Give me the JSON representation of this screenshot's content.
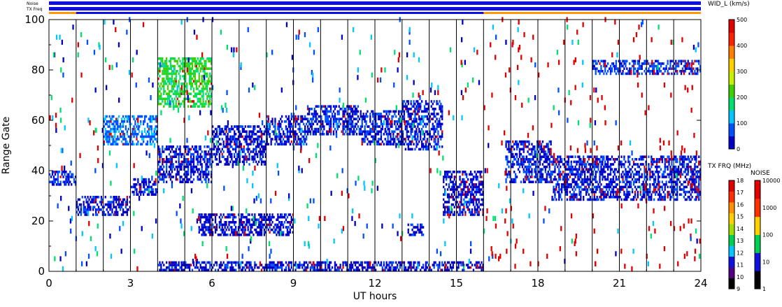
{
  "chart_data": {
    "type": "scatter",
    "subtype": "range-time-intensity",
    "xlabel": "UT hours",
    "ylabel": "Range Gate",
    "xlim": [
      0,
      24
    ],
    "ylim": [
      0,
      100
    ],
    "x_ticks": [
      "0",
      "3",
      "6",
      "9",
      "12",
      "15",
      "18",
      "21",
      "24"
    ],
    "y_ticks": [
      "0",
      "20",
      "40",
      "60",
      "80",
      "100"
    ],
    "scan_boundaries_ut": [
      1,
      2,
      3,
      4,
      5,
      6,
      7,
      8,
      9,
      10,
      11,
      12,
      13,
      14,
      15,
      16,
      17,
      18,
      19,
      20,
      21,
      22,
      23
    ],
    "status_bars": [
      {
        "label": "Noise",
        "color": "#1010e0"
      },
      {
        "label": "TX Freq",
        "color": "#1010e0"
      },
      {
        "label": "",
        "color": "#ff9900",
        "segments": [
          [
            0,
            1
          ],
          [
            16,
            24
          ]
        ]
      }
    ],
    "colorbars": [
      {
        "label": "WID_L (km/s)",
        "ticks": [
          "0",
          "100",
          "200",
          "300",
          "400",
          "500"
        ],
        "colors": [
          "#0000c8",
          "#0050ff",
          "#00c8ff",
          "#00e070",
          "#40d000",
          "#c8f000",
          "#ffd000",
          "#ff8000",
          "#ff2000",
          "#e00000"
        ]
      },
      {
        "label": "TX FRQ (MHz)",
        "ticks": [
          "9",
          "10",
          "11",
          "12",
          "13",
          "14",
          "15",
          "16",
          "17",
          "18"
        ],
        "colors": [
          "#000000",
          "#500080",
          "#1010e0",
          "#00c8ff",
          "#00d050",
          "#a0e000",
          "#ffd000",
          "#ff9000",
          "#ff3000",
          "#e00000"
        ]
      },
      {
        "label": "NOISE",
        "ticks": [
          "1",
          "10",
          "100",
          "1000",
          "10000"
        ],
        "colors": [
          "#000000",
          "#1010e0",
          "#00d050",
          "#ffd000",
          "#ff3000",
          "#e00000"
        ]
      }
    ],
    "echo_regions": [
      {
        "x0": 0.0,
        "x1": 1.0,
        "y0": 34,
        "y1": 40,
        "level": 45
      },
      {
        "x0": 1.0,
        "x1": 3.0,
        "y0": 22,
        "y1": 30,
        "level": 40
      },
      {
        "x0": 3.0,
        "x1": 4.0,
        "y0": 30,
        "y1": 37,
        "level": 40
      },
      {
        "x0": 4.0,
        "x1": 6.0,
        "y0": 35,
        "y1": 50,
        "level": 35
      },
      {
        "x0": 6.0,
        "x1": 8.0,
        "y0": 42,
        "y1": 58,
        "level": 35
      },
      {
        "x0": 8.0,
        "x1": 9.5,
        "y0": 50,
        "y1": 62,
        "level": 40
      },
      {
        "x0": 9.5,
        "x1": 11.5,
        "y0": 54,
        "y1": 66,
        "level": 45
      },
      {
        "x0": 11.5,
        "x1": 13.0,
        "y0": 50,
        "y1": 64,
        "level": 45
      },
      {
        "x0": 13.0,
        "x1": 14.5,
        "y0": 48,
        "y1": 68,
        "level": 40
      },
      {
        "x0": 14.5,
        "x1": 16.0,
        "y0": 22,
        "y1": 40,
        "level": 30
      },
      {
        "x0": 16.8,
        "x1": 18.5,
        "y0": 35,
        "y1": 52,
        "level": 45
      },
      {
        "x0": 18.5,
        "x1": 24.0,
        "y0": 28,
        "y1": 46,
        "level": 40
      },
      {
        "x0": 5.5,
        "x1": 9.0,
        "y0": 14,
        "y1": 23,
        "level": 30
      },
      {
        "x0": 13.2,
        "x1": 13.8,
        "y0": 14,
        "y1": 19,
        "level": 40
      },
      {
        "x0": 4.0,
        "x1": 16.0,
        "y0": 0,
        "y1": 4,
        "level": 35
      },
      {
        "x0": 20.0,
        "x1": 24.0,
        "y0": 78,
        "y1": 84,
        "level": 60
      },
      {
        "x0": 2.0,
        "x1": 4.0,
        "y0": 50,
        "y1": 62,
        "level": 90
      },
      {
        "x0": 4.0,
        "x1": 6.0,
        "y0": 65,
        "y1": 85,
        "level": 200
      }
    ]
  }
}
